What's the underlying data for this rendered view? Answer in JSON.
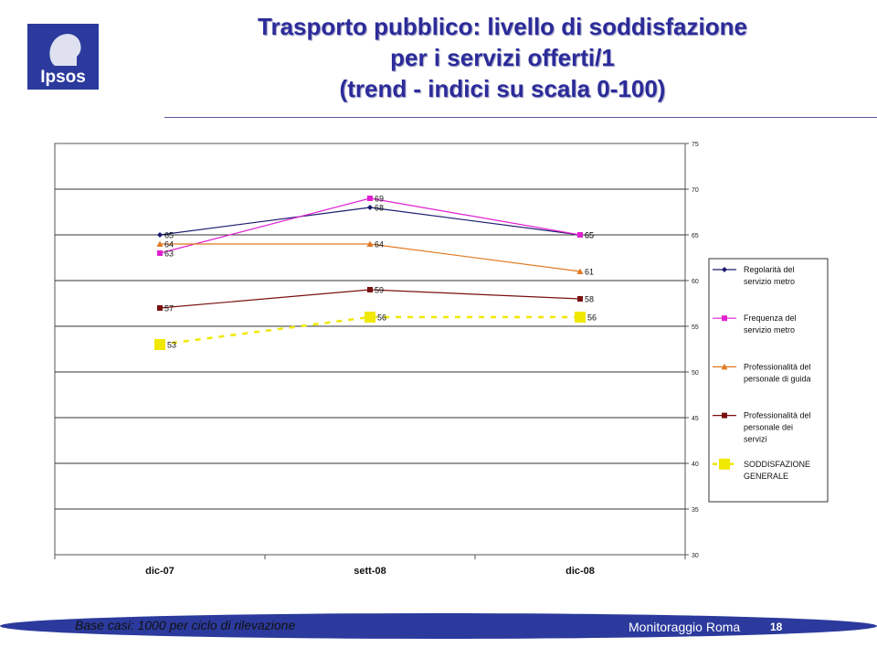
{
  "logo": {
    "text": "Ipsos",
    "bg_color": "#2b3a9c"
  },
  "title_lines": [
    "Trasporto pubblico: livello di soddisfazione",
    "per i servizi offerti/1",
    "(trend - indici su scala 0-100)"
  ],
  "footer": {
    "note": "Base casi: 1000 per ciclo di rilevazione",
    "brand": "Monitoraggio Roma",
    "page": "18",
    "band_color": "#2b3a9c"
  },
  "chart_data": {
    "type": "line",
    "categories": [
      "dic-07",
      "sett-08",
      "dic-08"
    ],
    "ylim": [
      30,
      75
    ],
    "yticks": [
      30,
      35,
      40,
      45,
      50,
      55,
      60,
      65,
      70,
      75
    ],
    "grid": true,
    "legend_position": "right",
    "series": [
      {
        "name": "Regolarità del servizio metro",
        "values": [
          65,
          68,
          65
        ],
        "color": "#1a1a6e",
        "marker": "diamond",
        "dash": false
      },
      {
        "name": "Frequenza del servizio metro",
        "values": [
          63,
          69,
          65
        ],
        "color": "#e020d0",
        "marker": "square",
        "dash": false
      },
      {
        "name": "Professionalità del personale di guida",
        "values": [
          64,
          64,
          61
        ],
        "color": "#e07820",
        "marker": "triangle",
        "dash": false
      },
      {
        "name": "Professionalità del personale dei servizi",
        "values": [
          57,
          59,
          58
        ],
        "color": "#7a1010",
        "marker": "square",
        "dash": false
      },
      {
        "name": "SODDISFAZIONE GENERALE",
        "values": [
          53,
          56,
          56
        ],
        "color": "#f0e800",
        "marker": "bigsquare",
        "dash": true
      }
    ]
  }
}
